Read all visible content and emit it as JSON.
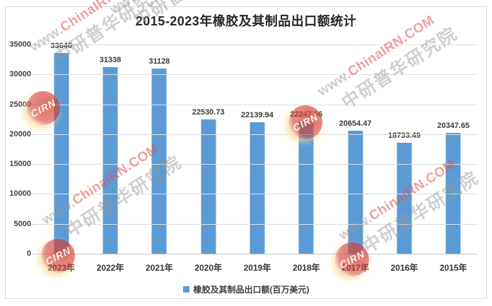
{
  "title": "2015-2023年橡胶及其制品出口额统计",
  "chart_data": {
    "type": "bar",
    "title": "2015-2023年橡胶及其制品出口额统计",
    "categories": [
      "2023年",
      "2022年",
      "2021年",
      "2020年",
      "2019年",
      "2018年",
      "2017年",
      "2016年",
      "2015年"
    ],
    "values": [
      33646,
      31338,
      31128,
      22530.73,
      22139.94,
      22247.66,
      20654.47,
      18733.49,
      20347.65
    ],
    "value_labels": [
      "33646",
      "31338",
      "31128",
      "22530.73",
      "22139.94",
      "22247.66",
      "20654.47",
      "18733.49",
      "20347.65"
    ],
    "series_name": "橡胶及其制品出口额(百万美元)",
    "xlabel": "",
    "ylabel": "",
    "ylim": [
      0,
      35000
    ],
    "yticks": [
      0,
      5000,
      10000,
      15000,
      20000,
      25000,
      30000,
      35000
    ],
    "grid": true,
    "legend_position": "bottom",
    "bar_color": "#5B9BD5"
  },
  "legend": {
    "label": "橡胶及其制品出口额(百万美元)",
    "swatch_color": "#5B9BD5"
  },
  "watermark": {
    "url_prefix": "www.",
    "url_main": "ChinaIRN.COM",
    "org_name": "中研普华研究院",
    "seal_text": "CIRN"
  },
  "colors": {
    "bar": "#5B9BD5",
    "gridline": "#DEDEDE",
    "axis_line": "#C6C6C6",
    "border": "#D9D9D9",
    "title_text": "#262626",
    "tick_text": "#404040",
    "value_label_text": "#3A3A3A",
    "watermark_red": "#DE5252",
    "watermark_gray": "#969494"
  }
}
